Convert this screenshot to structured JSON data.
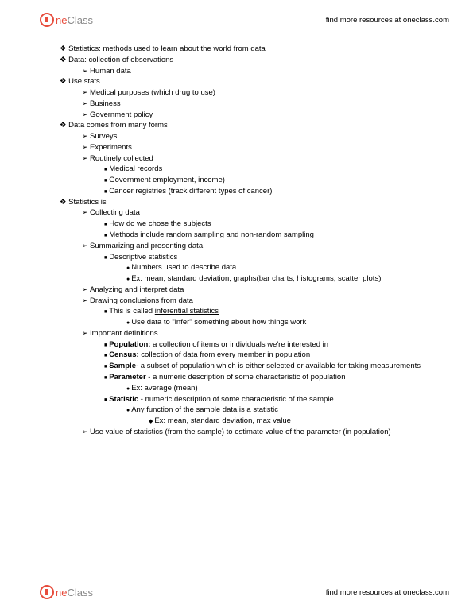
{
  "brand": {
    "part1": "ne",
    "part2": "Class"
  },
  "resources_text": "find more resources at oneclass.com",
  "notes": [
    {
      "lvl": 1,
      "b": "diamond",
      "t": "Statistics: methods used to learn about the world from data"
    },
    {
      "lvl": 1,
      "b": "diamond",
      "t": "Data: collection of observations"
    },
    {
      "lvl": 2,
      "b": "arrow",
      "t": "Human data"
    },
    {
      "lvl": 1,
      "b": "diamond",
      "t": "Use stats"
    },
    {
      "lvl": 2,
      "b": "arrow",
      "t": "Medical purposes (which drug to use)"
    },
    {
      "lvl": 2,
      "b": "arrow",
      "t": "Business"
    },
    {
      "lvl": 2,
      "b": "arrow",
      "t": "Government policy"
    },
    {
      "lvl": 1,
      "b": "diamond",
      "t": "Data comes from many forms"
    },
    {
      "lvl": 2,
      "b": "arrow",
      "t": "Surveys"
    },
    {
      "lvl": 2,
      "b": "arrow",
      "t": "Experiments"
    },
    {
      "lvl": 2,
      "b": "arrow",
      "t": "Routinely collected"
    },
    {
      "lvl": 3,
      "b": "square",
      "t": "Medical records"
    },
    {
      "lvl": 3,
      "b": "square",
      "t": "Government employment, income)"
    },
    {
      "lvl": 3,
      "b": "square",
      "t": "Cancer registries (track different types of cancer)"
    },
    {
      "lvl": 1,
      "b": "diamond",
      "t": "Statistics is"
    },
    {
      "lvl": 2,
      "b": "arrow",
      "t": "Collecting data"
    },
    {
      "lvl": 3,
      "b": "square",
      "t": "How do we chose the subjects"
    },
    {
      "lvl": 3,
      "b": "square",
      "t": "Methods include random sampling and non-random sampling"
    },
    {
      "lvl": 2,
      "b": "arrow",
      "t": "Summarizing and presenting data"
    },
    {
      "lvl": 3,
      "b": "square",
      "t": "Descriptive statistics"
    },
    {
      "lvl": 4,
      "b": "circle",
      "t": "Numbers used to describe data"
    },
    {
      "lvl": 4,
      "b": "circle",
      "t": "Ex: mean, standard deviation, graphs(bar charts, histograms, scatter plots)"
    },
    {
      "lvl": 2,
      "b": "arrow",
      "t": "Analyzing and interpret data"
    },
    {
      "lvl": 2,
      "b": "arrow",
      "t": "Drawing conclusions from data"
    },
    {
      "lvl": 3,
      "b": "square",
      "html": "This is called <span class='underline'>inferential statistics</span>"
    },
    {
      "lvl": 4,
      "b": "circle",
      "t": "Use data to \"infer\" something about how things work"
    },
    {
      "lvl": 2,
      "b": "arrow",
      "t": "Important definitions"
    },
    {
      "lvl": 3,
      "b": "square",
      "html": "<b>Population:</b> a collection of items or individuals we're interested in"
    },
    {
      "lvl": 3,
      "b": "square",
      "html": "<b>Census:</b> collection of data from every member in population"
    },
    {
      "lvl": 3,
      "b": "square",
      "html": "<b>Sample</b>- a subset of population which is either selected or available for taking measurements"
    },
    {
      "lvl": 3,
      "b": "square",
      "html": "<b>Parameter</b> - a numeric description of some characteristic of population"
    },
    {
      "lvl": 4,
      "b": "circle",
      "t": "Ex: average (mean)"
    },
    {
      "lvl": 3,
      "b": "square",
      "html": "<b>Statistic</b> - numeric description of some characteristic of the sample"
    },
    {
      "lvl": 4,
      "b": "circle",
      "t": "Any function of the sample data is a statistic"
    },
    {
      "lvl": 5,
      "b": "odiamond",
      "t": "Ex: mean, standard deviation, max value"
    },
    {
      "lvl": 2,
      "b": "arrow",
      "t": "Use value of statistics (from the sample) to estimate value of the parameter (in population)"
    }
  ]
}
